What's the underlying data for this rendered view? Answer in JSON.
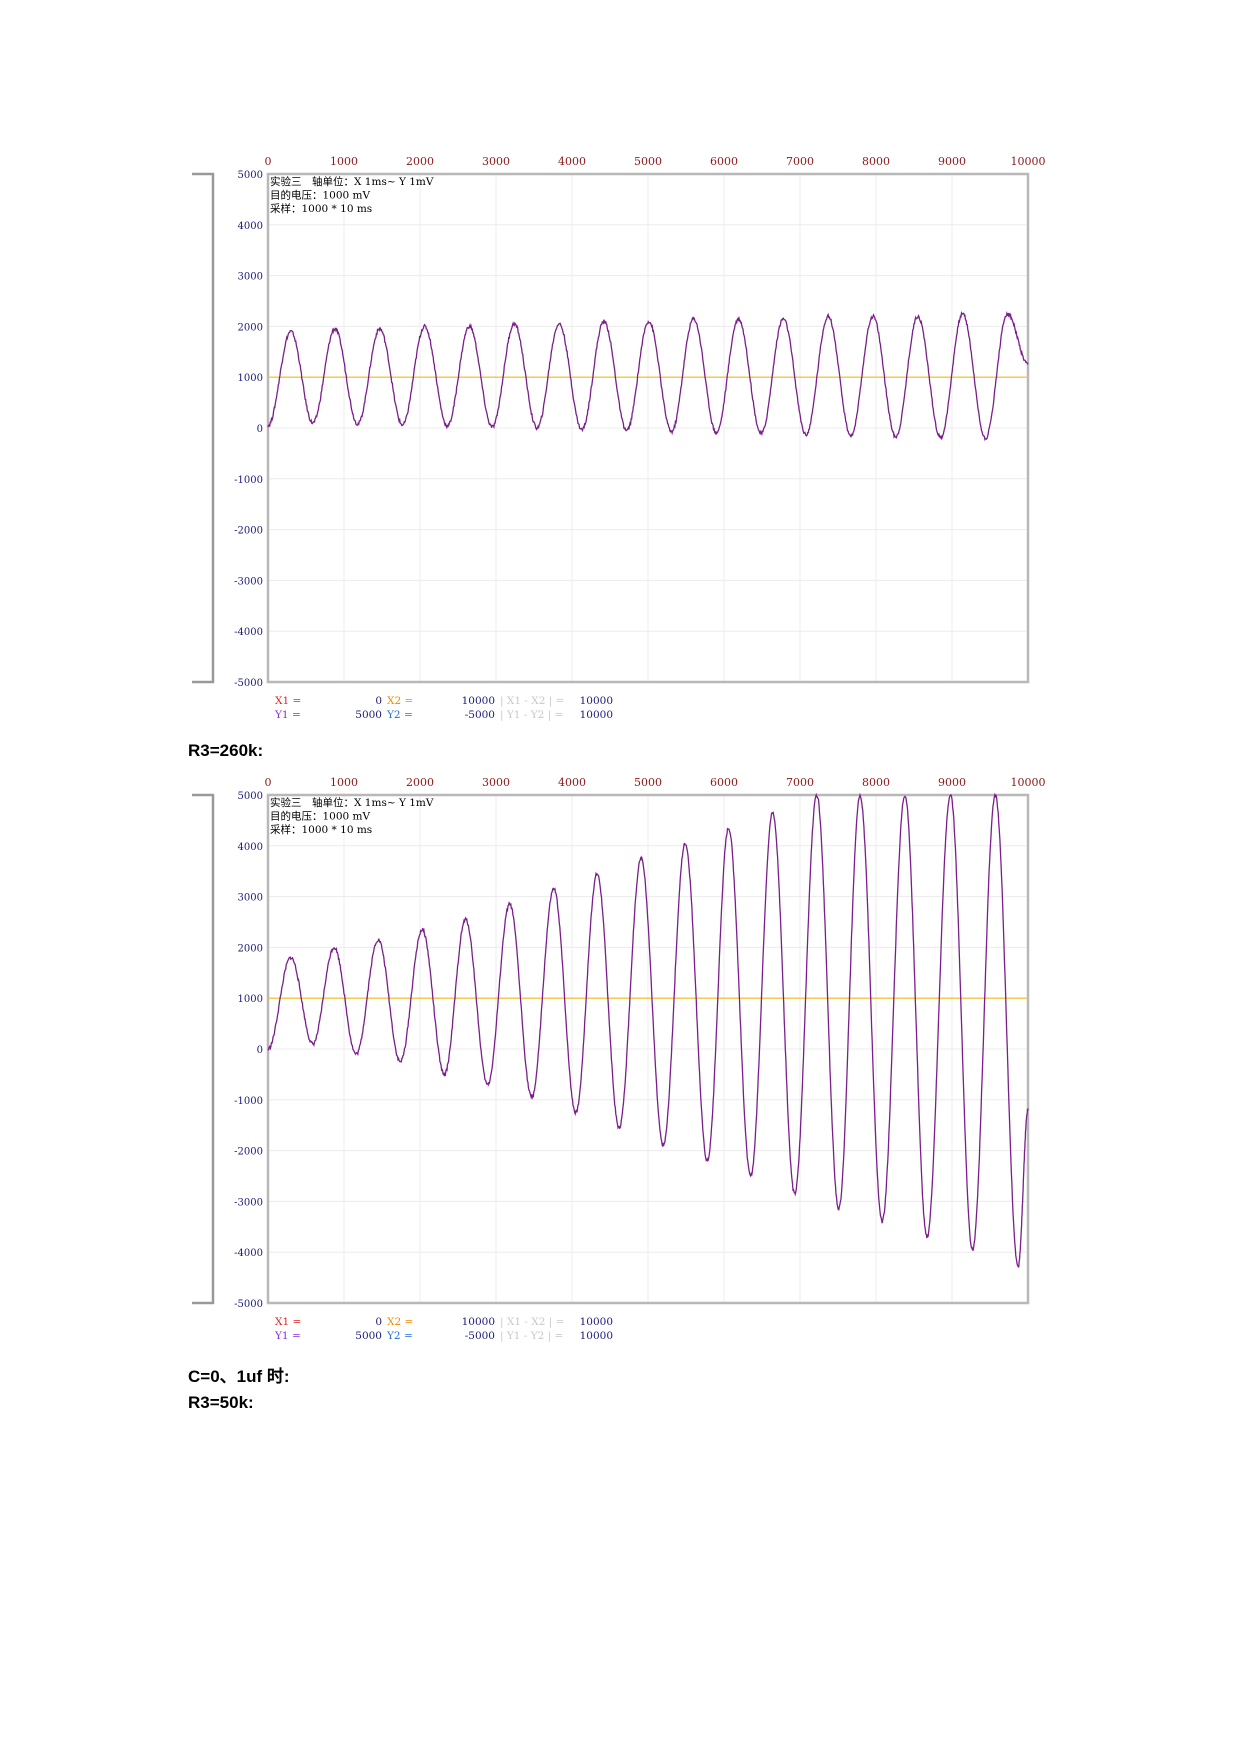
{
  "headings": {
    "h1": "R3=260k:",
    "h2": "C=0、1uf 时:",
    "h3": "R3=50k:"
  },
  "chart_data": [
    {
      "type": "line",
      "xlim": [
        0,
        10000
      ],
      "ylim": [
        -5000,
        5000
      ],
      "x_ticks": [
        "0",
        "1000",
        "2000",
        "3000",
        "4000",
        "5000",
        "6000",
        "7000",
        "8000",
        "9000",
        "10000"
      ],
      "y_ticks": [
        "5000",
        "4000",
        "3000",
        "2000",
        "1000",
        "0",
        "-1000",
        "-2000",
        "-3000",
        "-4000",
        "-5000"
      ],
      "grid": true,
      "annotations": [
        "实验三　轴单位：X 1ms~ Y 1mV",
        "目的电压：1000 mV",
        "采样：1000 * 10 ms"
      ],
      "setpoint": {
        "value": 1000,
        "color": "#f5c542"
      },
      "series": [
        {
          "color": "#7a1f8a",
          "period": 590,
          "center": 1000,
          "points": [
            [
              0,
              50
            ],
            [
              300,
              1900
            ],
            [
              590,
              100
            ],
            [
              880,
              1950
            ],
            [
              1180,
              80
            ],
            [
              1470,
              1950
            ],
            [
              1770,
              60
            ],
            [
              2060,
              2000
            ],
            [
              2360,
              40
            ],
            [
              2650,
              2000
            ],
            [
              2950,
              20
            ],
            [
              3240,
              2050
            ],
            [
              3540,
              0
            ],
            [
              3830,
              2050
            ],
            [
              4130,
              -30
            ],
            [
              4420,
              2100
            ],
            [
              4720,
              -50
            ],
            [
              5010,
              2100
            ],
            [
              5310,
              -70
            ],
            [
              5600,
              2150
            ],
            [
              5900,
              -90
            ],
            [
              6190,
              2150
            ],
            [
              6490,
              -110
            ],
            [
              6780,
              2150
            ],
            [
              7080,
              -130
            ],
            [
              7370,
              2200
            ],
            [
              7670,
              -150
            ],
            [
              7960,
              2200
            ],
            [
              8260,
              -170
            ],
            [
              8550,
              2200
            ],
            [
              8850,
              -190
            ],
            [
              9140,
              2250
            ],
            [
              9440,
              -200
            ],
            [
              9730,
              2250
            ],
            [
              10000,
              1250
            ]
          ]
        }
      ],
      "cursors": {
        "x1": "0",
        "x2": "10000",
        "dx": "10000",
        "y1": "5000",
        "y2": "-5000",
        "dy": "10000",
        "labels": {
          "x1": "X1 =",
          "x2": "X2 =",
          "dx": "| X1 - X2 | =",
          "y1": "Y1 =",
          "y2": "Y2 =",
          "dy": "| Y1 - Y2 | ="
        }
      }
    },
    {
      "type": "line",
      "xlim": [
        0,
        10000
      ],
      "ylim": [
        -5000,
        5000
      ],
      "x_ticks": [
        "0",
        "1000",
        "2000",
        "3000",
        "4000",
        "5000",
        "6000",
        "7000",
        "8000",
        "9000",
        "10000"
      ],
      "y_ticks": [
        "5000",
        "4000",
        "3000",
        "2000",
        "1000",
        "0",
        "-1000",
        "-2000",
        "-3000",
        "-4000",
        "-5000"
      ],
      "grid": true,
      "annotations": [
        "实验三　轴单位：X 1ms~ Y 1mV",
        "目的电压：1000 mV",
        "采样：1000 * 10 ms"
      ],
      "setpoint": {
        "value": 1000,
        "color": "#f5c542"
      },
      "series": [
        {
          "color": "#7a1f8a",
          "period": 580,
          "center": 1000,
          "points": [
            [
              0,
              0
            ],
            [
              300,
              1800
            ],
            [
              590,
              100
            ],
            [
              870,
              2000
            ],
            [
              1160,
              -100
            ],
            [
              1450,
              2150
            ],
            [
              1740,
              -250
            ],
            [
              2030,
              2350
            ],
            [
              2320,
              -500
            ],
            [
              2600,
              2550
            ],
            [
              2890,
              -700
            ],
            [
              3180,
              2850
            ],
            [
              3470,
              -950
            ],
            [
              3760,
              3150
            ],
            [
              4050,
              -1250
            ],
            [
              4330,
              3450
            ],
            [
              4620,
              -1550
            ],
            [
              4910,
              3750
            ],
            [
              5200,
              -1900
            ],
            [
              5490,
              4050
            ],
            [
              5780,
              -2200
            ],
            [
              6060,
              4350
            ],
            [
              6350,
              -2500
            ],
            [
              6640,
              4650
            ],
            [
              6930,
              -2850
            ],
            [
              7220,
              5000
            ],
            [
              7510,
              -3150
            ],
            [
              7790,
              5000
            ],
            [
              8080,
              -3400
            ],
            [
              8380,
              5000
            ],
            [
              8670,
              -3700
            ],
            [
              8980,
              5000
            ],
            [
              9270,
              -3950
            ],
            [
              9570,
              5000
            ],
            [
              9870,
              -4300
            ],
            [
              10000,
              -1200
            ]
          ]
        }
      ],
      "cursors": {
        "x1": "0",
        "x2": "10000",
        "dx": "10000",
        "y1": "5000",
        "y2": "-5000",
        "dy": "10000",
        "labels": {
          "x1": "X1 =",
          "x2": "X2 =",
          "dx": "| X1 - X2 | =",
          "y1": "Y1 =",
          "y2": "Y2 =",
          "dy": "| Y1 - Y2 | ="
        }
      }
    }
  ]
}
